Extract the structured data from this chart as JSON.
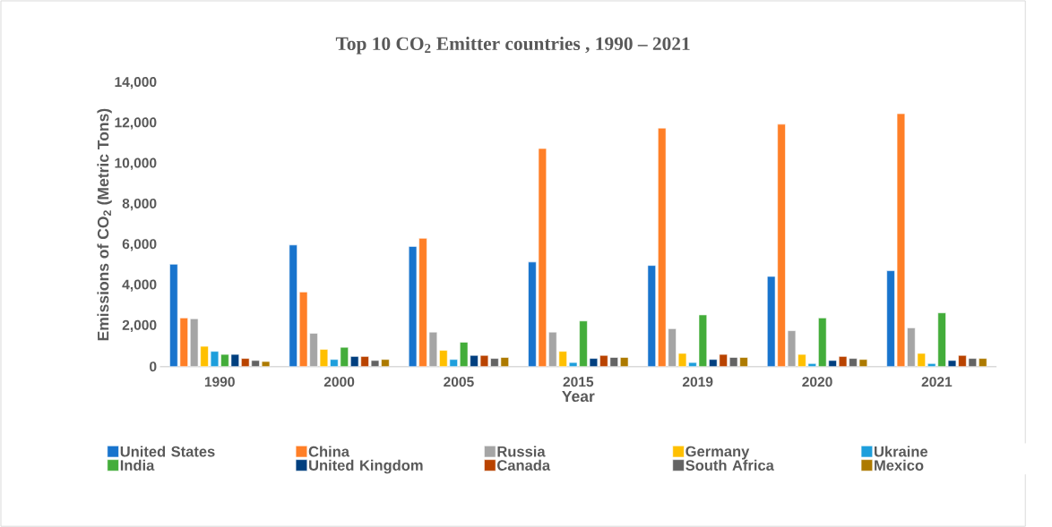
{
  "chart_data": {
    "type": "bar",
    "title": "Top 10 CO$_{2}$ Emitter countries , 1990 – 2021",
    "xlabel": "Year",
    "ylabel": "Emissions of CO$_{2}$ (Metric Tons)",
    "categories": [
      "1990",
      "2000",
      "2005",
      "2015",
      "2019",
      "2020",
      "2021"
    ],
    "ylim": [
      0,
      14000
    ],
    "yticks": [
      {
        "value": 0,
        "label": "0"
      },
      {
        "value": 2000,
        "label": "2,000"
      },
      {
        "value": 4000,
        "label": "4,000"
      },
      {
        "value": 6000,
        "label": "6,000"
      },
      {
        "value": 8000,
        "label": "8,000"
      },
      {
        "value": 10000,
        "label": "10,000"
      },
      {
        "value": 12000,
        "label": "12,000"
      },
      {
        "value": 14000,
        "label": "14,000"
      }
    ],
    "legend": "bottom",
    "series": [
      {
        "name": "United States",
        "color": "#1874cd",
        "values": [
          5050,
          6000,
          5930,
          5160,
          4990,
          4450,
          4730
        ]
      },
      {
        "name": "China",
        "color": "#ff7f27",
        "values": [
          2400,
          3680,
          6330,
          10760,
          11770,
          11960,
          12480
        ]
      },
      {
        "name": "Russia",
        "color": "#a5a5a5",
        "values": [
          2360,
          1640,
          1700,
          1700,
          1870,
          1770,
          1910
        ]
      },
      {
        "name": "Germany",
        "color": "#ffc000",
        "values": [
          1000,
          850,
          800,
          750,
          650,
          600,
          650
        ]
      },
      {
        "name": "Ukraine",
        "color": "#1e9fdc",
        "values": [
          750,
          350,
          350,
          200,
          200,
          150,
          150
        ]
      },
      {
        "name": "India",
        "color": "#43ad3a",
        "values": [
          600,
          950,
          1200,
          2250,
          2550,
          2400,
          2650
        ]
      },
      {
        "name": "United Kingdom",
        "color": "#003f7f",
        "values": [
          600,
          500,
          550,
          400,
          350,
          300,
          300
        ]
      },
      {
        "name": "Canada",
        "color": "#b94300",
        "values": [
          400,
          500,
          550,
          550,
          600,
          500,
          550
        ]
      },
      {
        "name": "South Africa",
        "color": "#636363",
        "values": [
          300,
          300,
          400,
          450,
          450,
          400,
          400
        ]
      },
      {
        "name": "Mexico",
        "color": "#ad7a00",
        "values": [
          250,
          350,
          450,
          450,
          450,
          350,
          400
        ]
      }
    ]
  }
}
